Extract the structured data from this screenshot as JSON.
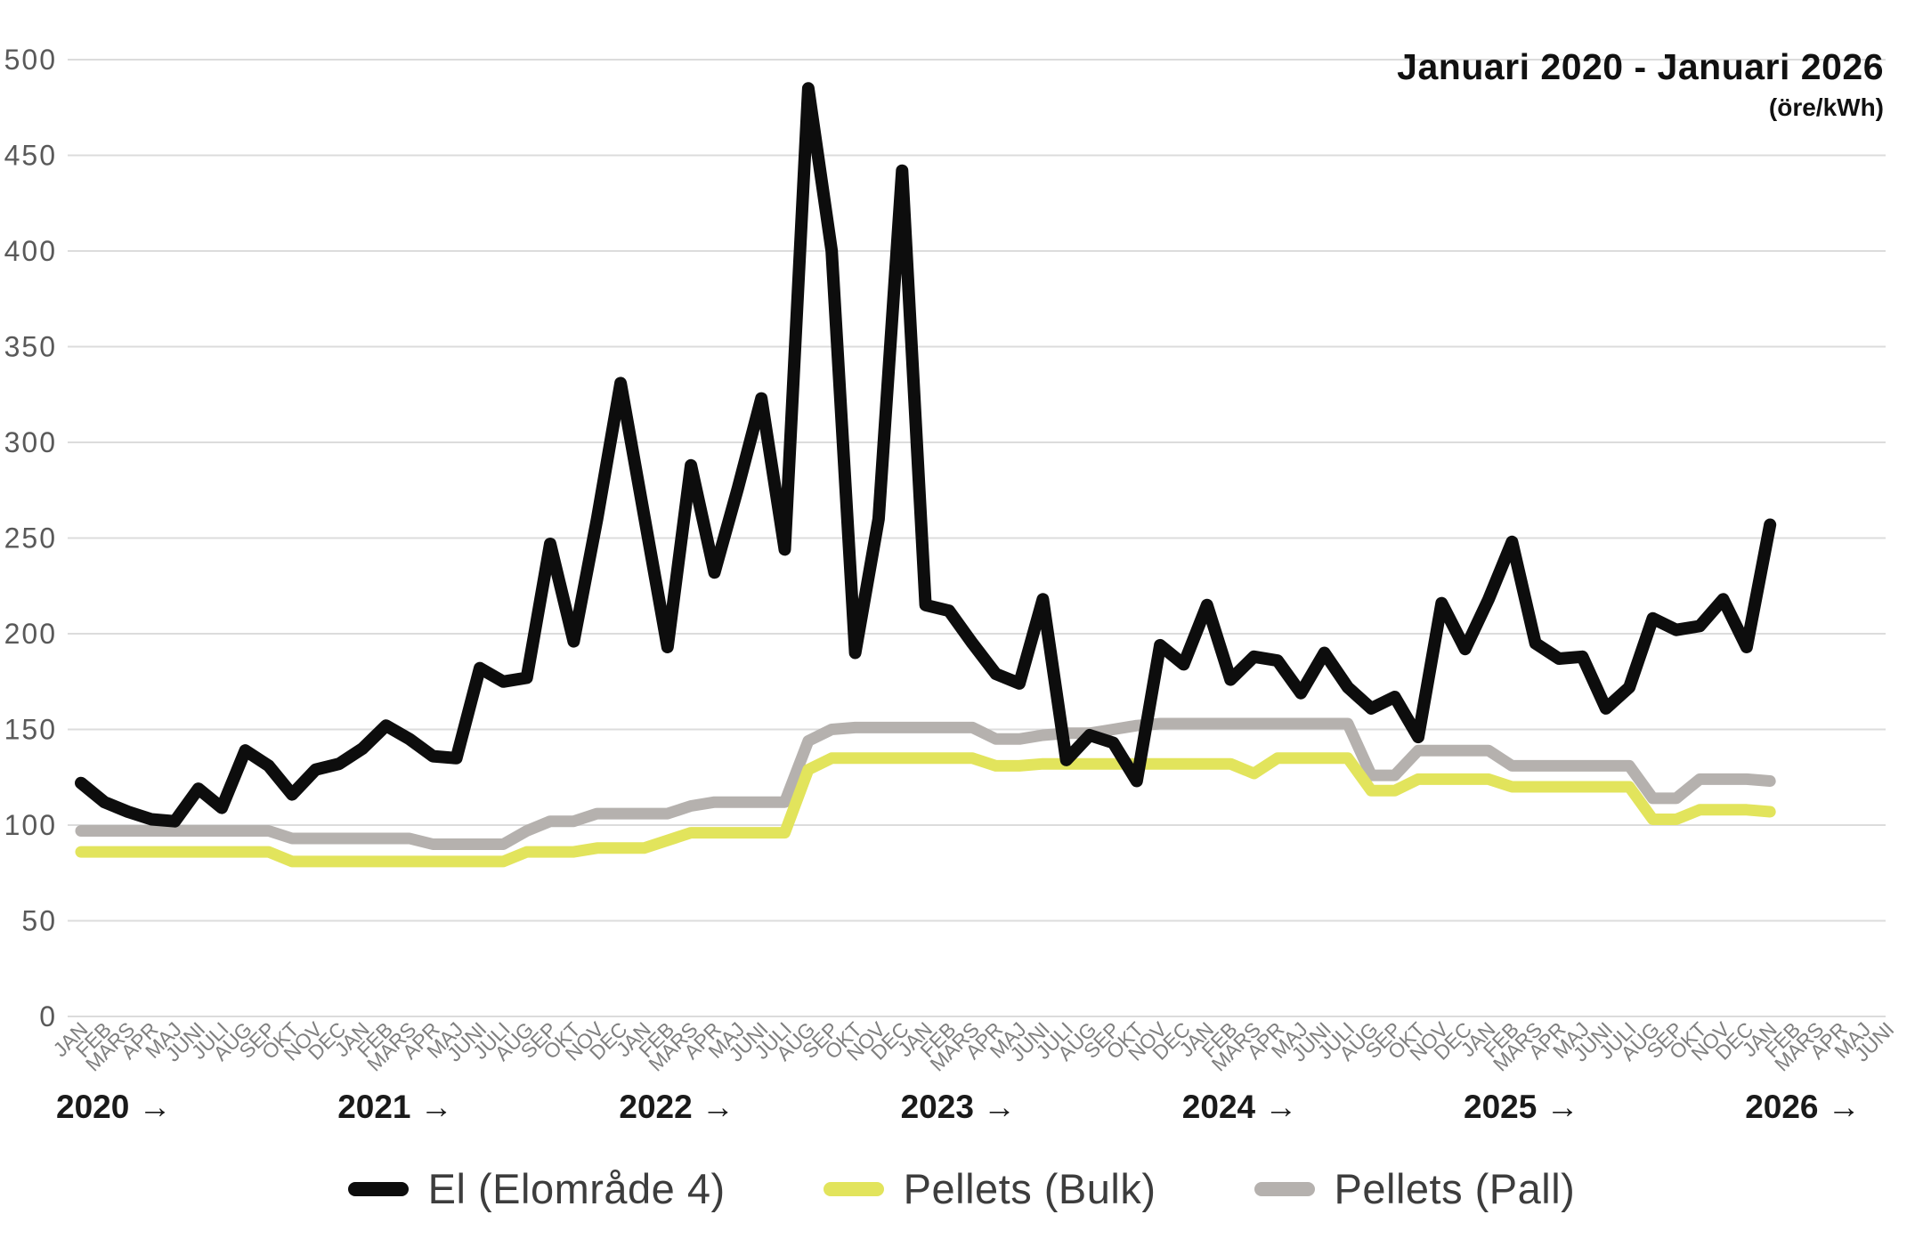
{
  "title": "Januari 2020 - Januari 2026",
  "subtitle": "(öre/kWh)",
  "colors": {
    "el": "#0d0d0d",
    "bulk": "#e2e45c",
    "pall": "#b5b1ae",
    "grid": "#dcdcdc",
    "y_tick_text": "#595959",
    "month_text": "#7f7f7f",
    "year_text": "#1a1a1a"
  },
  "legend": {
    "items": [
      {
        "label": "El (Elområde 4)",
        "color_key": "el"
      },
      {
        "label": "Pellets (Bulk)",
        "color_key": "bulk"
      },
      {
        "label": "Pellets (Pall)",
        "color_key": "pall"
      }
    ]
  },
  "x_axis": {
    "years": [
      {
        "label": "2020",
        "arrow": "→"
      },
      {
        "label": "2021",
        "arrow": "→"
      },
      {
        "label": "2022",
        "arrow": "→"
      },
      {
        "label": "2023",
        "arrow": "→"
      },
      {
        "label": "2024",
        "arrow": "→"
      },
      {
        "label": "2025",
        "arrow": "→"
      },
      {
        "label": "2026",
        "arrow": "→"
      }
    ]
  },
  "chart_data": {
    "type": "line",
    "title": "Januari 2020 - Januari 2026",
    "ylabel": "(öre/kWh)",
    "ylim": [
      0,
      500
    ],
    "y_ticks": [
      0,
      50,
      100,
      150,
      200,
      250,
      300,
      350,
      400,
      450,
      500
    ],
    "grid": "horizontal",
    "legend_position": "bottom",
    "x": [
      "JAN",
      "FEB",
      "MARS",
      "APR",
      "MAJ",
      "JUNI",
      "JULI",
      "AUG",
      "SEP",
      "OKT",
      "NOV",
      "DEC",
      "JAN",
      "FEB",
      "MARS",
      "APR",
      "MAJ",
      "JUNI",
      "JULI",
      "AUG",
      "SEP",
      "OKT",
      "NOV",
      "DEC",
      "JAN",
      "FEB",
      "MARS",
      "APR",
      "MAJ",
      "JUNI",
      "JULI",
      "AUG",
      "SEP",
      "OKT",
      "NOV",
      "DEC",
      "JAN",
      "FEB",
      "MARS",
      "APR",
      "MAJ",
      "JUNI",
      "JULI",
      "AUG",
      "SEP",
      "OKT",
      "NOV",
      "DEC",
      "JAN",
      "FEB",
      "MARS",
      "APR",
      "MAJ",
      "JUNI",
      "JULI",
      "AUG",
      "SEP",
      "OKT",
      "NOV",
      "DEC",
      "JAN",
      "FEB",
      "MARS",
      "APR",
      "MAJ",
      "JUNI",
      "JULI",
      "AUG",
      "SEP",
      "OKT",
      "NOV",
      "DEC",
      "JAN",
      "FEB",
      "MARS",
      "APR",
      "MAJ",
      "JUNI"
    ],
    "series": [
      {
        "name": "El (Elområde 4)",
        "color_key": "el",
        "values": [
          122,
          112,
          107,
          103,
          102,
          119,
          109,
          139,
          131,
          116,
          129,
          132,
          140,
          152,
          145,
          136,
          135,
          182,
          175,
          177,
          247,
          196,
          260,
          331,
          262,
          193,
          288,
          232,
          276,
          323,
          244,
          485,
          400,
          190,
          260,
          442,
          215,
          212,
          195,
          179,
          174,
          218,
          134,
          147,
          143,
          123,
          194,
          184,
          215,
          176,
          188,
          186,
          169,
          190,
          172,
          161,
          167,
          146,
          216,
          192,
          218,
          248,
          195,
          187,
          188,
          161,
          172,
          208,
          202,
          204,
          218,
          193,
          257
        ]
      },
      {
        "name": "Pellets (Bulk)",
        "color_key": "bulk",
        "values": [
          86,
          86,
          86,
          86,
          86,
          86,
          86,
          86,
          86,
          81,
          81,
          81,
          81,
          81,
          81,
          81,
          81,
          81,
          81,
          86,
          86,
          86,
          88,
          88,
          88,
          92,
          96,
          96,
          96,
          96,
          96,
          129,
          135,
          135,
          135,
          135,
          135,
          135,
          135,
          131,
          131,
          132,
          132,
          132,
          132,
          132,
          132,
          132,
          132,
          132,
          127,
          135,
          135,
          135,
          135,
          118,
          118,
          124,
          124,
          124,
          124,
          120,
          120,
          120,
          120,
          120,
          120,
          103,
          103,
          108,
          108,
          108,
          107
        ]
      },
      {
        "name": "Pellets (Pall)",
        "color_key": "pall",
        "values": [
          97,
          97,
          97,
          97,
          97,
          97,
          97,
          97,
          97,
          93,
          93,
          93,
          93,
          93,
          93,
          90,
          90,
          90,
          90,
          97,
          102,
          102,
          106,
          106,
          106,
          106,
          110,
          112,
          112,
          112,
          112,
          144,
          150,
          151,
          151,
          151,
          151,
          151,
          151,
          145,
          145,
          147,
          148,
          148,
          150,
          152,
          153,
          153,
          153,
          153,
          153,
          153,
          153,
          153,
          153,
          126,
          126,
          139,
          139,
          139,
          139,
          131,
          131,
          131,
          131,
          131,
          131,
          114,
          114,
          124,
          124,
          124,
          123
        ]
      }
    ]
  }
}
